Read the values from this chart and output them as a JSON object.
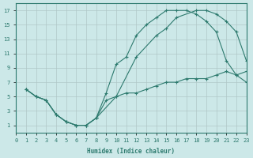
{
  "xlabel": "Humidex (Indice chaleur)",
  "bg_color": "#cce8e8",
  "grid_color": "#b0c8c8",
  "line_color": "#2d7a6e",
  "xlim": [
    0,
    23
  ],
  "ylim": [
    0,
    18
  ],
  "xticks": [
    0,
    1,
    2,
    3,
    4,
    5,
    6,
    7,
    8,
    9,
    10,
    11,
    12,
    13,
    14,
    15,
    16,
    17,
    18,
    19,
    20,
    21,
    22,
    23
  ],
  "yticks": [
    1,
    3,
    5,
    7,
    9,
    11,
    13,
    15,
    17
  ],
  "c1x": [
    1,
    2,
    3,
    4,
    5,
    6,
    7,
    8,
    9,
    10,
    11,
    12,
    13,
    14,
    15,
    16,
    17,
    18,
    19,
    20,
    21,
    22,
    23
  ],
  "c1y": [
    6.0,
    5.0,
    4.5,
    2.5,
    1.5,
    1.0,
    1.0,
    2.0,
    5.5,
    9.5,
    10.5,
    13.5,
    15.0,
    16.0,
    17.0,
    17.0,
    17.0,
    16.5,
    15.5,
    14.0,
    10.0,
    8.0,
    7.0
  ],
  "c2x": [
    1,
    2,
    3,
    4,
    5,
    6,
    7,
    8,
    9,
    10,
    11,
    12,
    13,
    14,
    15,
    16,
    17,
    18,
    19,
    20,
    21,
    22,
    23
  ],
  "c2y": [
    6.0,
    5.0,
    4.5,
    2.5,
    1.5,
    1.0,
    1.0,
    2.0,
    4.5,
    5.0,
    5.5,
    5.5,
    6.0,
    6.5,
    7.0,
    7.0,
    7.5,
    7.5,
    7.5,
    8.0,
    8.5,
    8.0,
    8.5
  ],
  "c3x": [
    1,
    2,
    3,
    4,
    5,
    6,
    7,
    8,
    10,
    12,
    14,
    15,
    16,
    18,
    19,
    20,
    21,
    22,
    23
  ],
  "c3y": [
    6.0,
    5.0,
    4.5,
    2.5,
    1.5,
    1.0,
    1.0,
    2.0,
    5.0,
    10.5,
    13.5,
    14.5,
    16.0,
    17.0,
    17.0,
    16.5,
    15.5,
    14.0,
    10.0
  ]
}
